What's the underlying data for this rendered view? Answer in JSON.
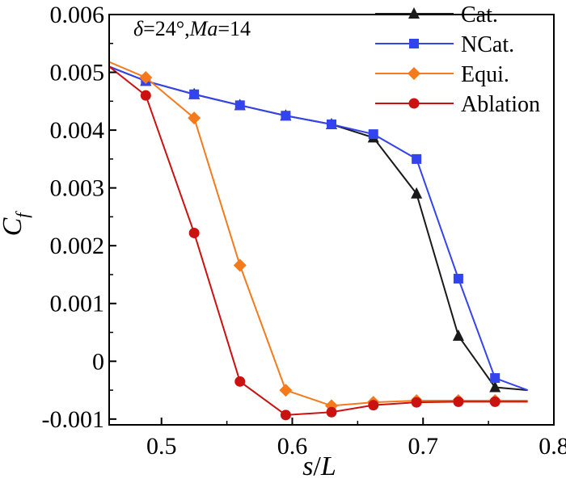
{
  "chart_data": {
    "type": "line",
    "title": "",
    "annotation": {
      "delta": "δ",
      "delta_value": "=24°,",
      "ma": "Ma",
      "ma_value": "=14"
    },
    "xlabel": {
      "s": "s",
      "slash": "/",
      "L": "L"
    },
    "ylabel": {
      "main": "C",
      "sub": "f"
    },
    "xlim": [
      0.46,
      0.8
    ],
    "ylim": [
      -0.0011,
      0.006
    ],
    "xticks": [
      0.5,
      0.6,
      0.7,
      0.8
    ],
    "xtick_labels": [
      "0.5",
      "0.6",
      "0.7",
      "0.8"
    ],
    "yticks": [
      -0.001,
      0,
      0.001,
      0.002,
      0.003,
      0.004,
      0.005,
      0.006
    ],
    "ytick_labels": [
      "-0.001",
      "0",
      "0.001",
      "0.002",
      "0.003",
      "0.004",
      "0.005",
      "0.006"
    ],
    "grid": false,
    "legend_position": "top-right",
    "series": [
      {
        "name": "Cat.",
        "color": "#1a1a1a",
        "marker": "triangle",
        "x": [
          0.46,
          0.488,
          0.525,
          0.56,
          0.595,
          0.63,
          0.662,
          0.695,
          0.727,
          0.755,
          0.78
        ],
        "y": [
          0.0051,
          0.00485,
          0.00462,
          0.00443,
          0.00425,
          0.0041,
          0.00387,
          0.0029,
          0.00044,
          -0.00045,
          -0.0005
        ],
        "marked": [
          false,
          true,
          true,
          true,
          true,
          true,
          true,
          true,
          true,
          true,
          false
        ]
      },
      {
        "name": "NCat.",
        "color": "#3344ee",
        "marker": "square",
        "x": [
          0.46,
          0.488,
          0.525,
          0.56,
          0.595,
          0.63,
          0.662,
          0.695,
          0.727,
          0.755,
          0.78
        ],
        "y": [
          0.0051,
          0.00485,
          0.00462,
          0.00443,
          0.00425,
          0.0041,
          0.00393,
          0.0035,
          0.00143,
          -0.00029,
          -0.0005
        ],
        "marked": [
          false,
          true,
          true,
          true,
          true,
          true,
          true,
          true,
          true,
          true,
          false
        ]
      },
      {
        "name": "Equi.",
        "color": "#f57a1c",
        "marker": "diamond",
        "x": [
          0.46,
          0.488,
          0.525,
          0.56,
          0.595,
          0.63,
          0.662,
          0.695,
          0.727,
          0.755,
          0.78
        ],
        "y": [
          0.00518,
          0.00491,
          0.00421,
          0.00166,
          -0.0005,
          -0.00077,
          -0.00071,
          -0.00068,
          -0.00068,
          -0.00068,
          -0.00068
        ],
        "marked": [
          false,
          true,
          true,
          true,
          true,
          true,
          true,
          true,
          true,
          true,
          false
        ]
      },
      {
        "name": "Ablation",
        "color": "#cc1111",
        "marker": "circle",
        "x": [
          0.46,
          0.488,
          0.525,
          0.56,
          0.595,
          0.63,
          0.662,
          0.695,
          0.727,
          0.755,
          0.78
        ],
        "y": [
          0.0051,
          0.0046,
          0.00222,
          -0.00035,
          -0.00093,
          -0.00088,
          -0.00076,
          -0.00071,
          -0.0007,
          -0.0007,
          -0.0007
        ],
        "marked": [
          false,
          true,
          true,
          true,
          true,
          true,
          true,
          true,
          true,
          true,
          false
        ]
      }
    ]
  }
}
